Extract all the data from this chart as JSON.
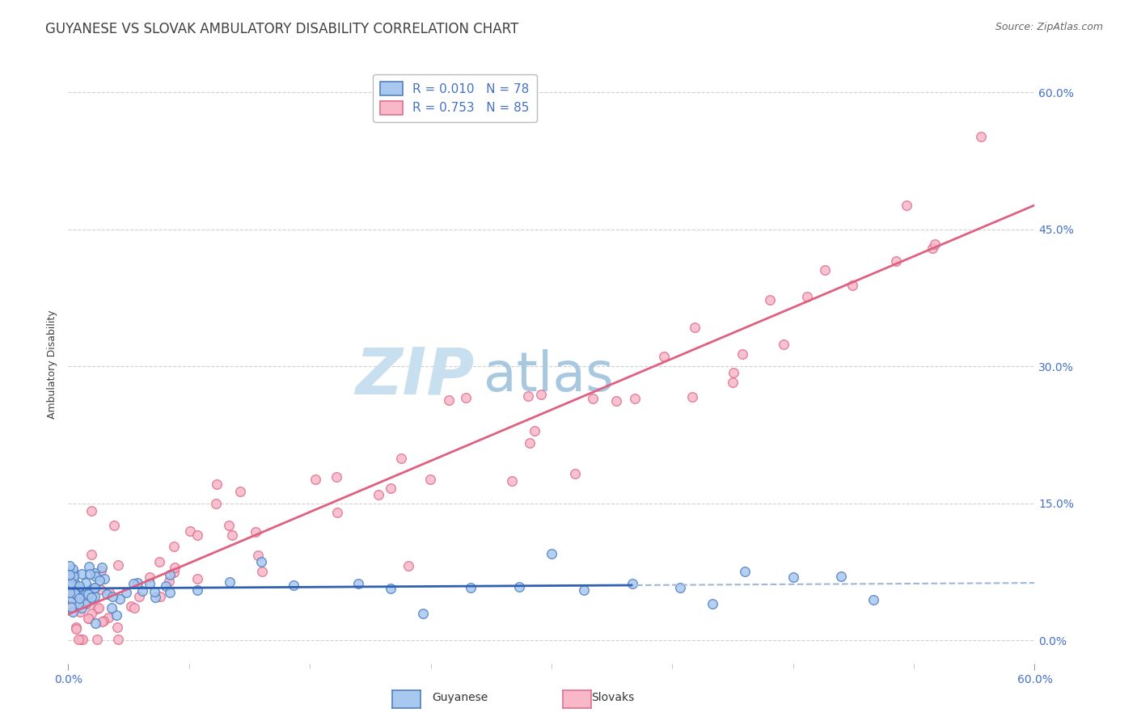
{
  "title": "GUYANESE VS SLOVAK AMBULATORY DISABILITY CORRELATION CHART",
  "source": "Source: ZipAtlas.com",
  "ylabel": "Ambulatory Disability",
  "xmin": 0.0,
  "xmax": 0.6,
  "ymin": -0.025,
  "ymax": 0.63,
  "yticks": [
    0.0,
    0.15,
    0.3,
    0.45,
    0.6
  ],
  "xtick_labels_bottom": [
    "0.0%",
    "60.0%"
  ],
  "xtick_pos_bottom": [
    0.0,
    0.6
  ],
  "legend_label_guyanese": "R = 0.010   N = 78",
  "legend_label_slovak": "R = 0.753   N = 85",
  "guyanese_fill": "#a8c8f0",
  "guyanese_edge": "#5080c0",
  "slovak_fill": "#f8b8c8",
  "slovak_edge": "#e07090",
  "guyanese_line_color": "#3060b0",
  "slovak_line_color": "#e06080",
  "guyanese_line_dash_color": "#a0b8d8",
  "watermark_zip": "ZIP",
  "watermark_atlas": "atlas",
  "watermark_color_zip": "#c8dff0",
  "watermark_color_atlas": "#a8c8e0",
  "background_color": "#ffffff",
  "grid_color": "#d0d0d0",
  "title_color": "#404040",
  "axis_label_color": "#404040",
  "tick_label_color": "#4472c4",
  "title_fontsize": 12,
  "source_fontsize": 9,
  "ylabel_fontsize": 9,
  "tick_fontsize": 10,
  "legend_fontsize": 11
}
